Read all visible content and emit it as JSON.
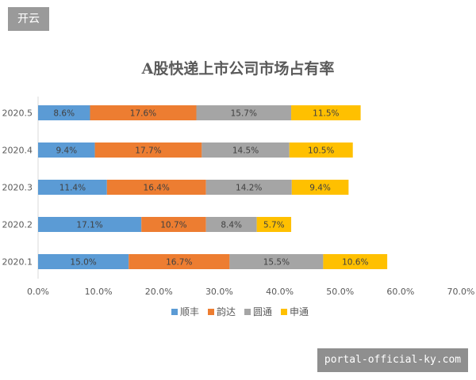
{
  "watermark_top": "开云",
  "watermark_bottom": "portal-official-ky.com",
  "chart_data": {
    "type": "bar",
    "orientation": "horizontal",
    "stacked": true,
    "title": "A股快递上市公司市场占有率",
    "categories": [
      "2020.5",
      "2020.4",
      "2020.3",
      "2020.2",
      "2020.1"
    ],
    "series": [
      {
        "name": "顺丰",
        "color": "#5b9bd5",
        "values": [
          8.6,
          9.4,
          11.4,
          17.1,
          15.0
        ],
        "labels": [
          "8.6%",
          "9.4%",
          "11.4%",
          "17.1%",
          "15.0%"
        ]
      },
      {
        "name": "韵达",
        "color": "#ed7d31",
        "values": [
          17.6,
          17.7,
          16.4,
          10.7,
          16.7
        ],
        "labels": [
          "17.6%",
          "17.7%",
          "16.4%",
          "10.7%",
          "16.7%"
        ]
      },
      {
        "name": "圆通",
        "color": "#a5a5a5",
        "values": [
          15.7,
          14.5,
          14.2,
          8.4,
          15.5
        ],
        "labels": [
          "15.7%",
          "14.5%",
          "14.2%",
          "8.4%",
          "15.5%"
        ]
      },
      {
        "name": "申通",
        "color": "#ffc000",
        "values": [
          11.5,
          10.5,
          9.4,
          5.7,
          10.6
        ],
        "labels": [
          "11.5%",
          "10.5%",
          "9.4%",
          "5.7%",
          "10.6%"
        ]
      }
    ],
    "xlim": [
      0,
      70
    ],
    "xticks": [
      "0.0%",
      "10.0%",
      "20.0%",
      "30.0%",
      "40.0%",
      "50.0%",
      "60.0%",
      "70.0%"
    ],
    "grid": false,
    "legend_position": "bottom"
  }
}
